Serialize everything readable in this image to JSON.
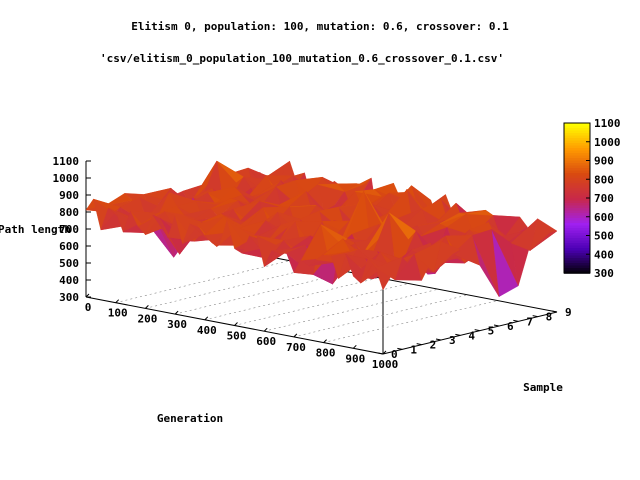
{
  "chart_data": {
    "type": "surface",
    "title": "Elitism 0, population: 100, mutation: 0.6, crossover: 0.1",
    "series_label": "'csv/elitism_0_population_100_mutation_0.6_crossover_0.1.csv'",
    "xlabel": "Generation",
    "ylabel": "Sample",
    "zlabel": "Path length",
    "x_ticks": [
      "0",
      "100",
      "200",
      "300",
      "400",
      "500",
      "600",
      "700",
      "800",
      "900",
      "1000"
    ],
    "y_ticks": [
      "0",
      "1",
      "2",
      "3",
      "4",
      "5",
      "6",
      "7",
      "8",
      "9"
    ],
    "z_ticks": [
      "300",
      "400",
      "500",
      "600",
      "700",
      "800",
      "900",
      "1000",
      "1100"
    ],
    "colorbar_ticks": [
      "300",
      "400",
      "500",
      "600",
      "700",
      "800",
      "900",
      "1000",
      "1100"
    ],
    "xlim": [
      0,
      1000
    ],
    "ylim": [
      0,
      9
    ],
    "zlim": [
      300,
      1100
    ],
    "value_range_typical": [
      500,
      950
    ],
    "colormap": [
      "#000000",
      "#4b00b4",
      "#a020f0",
      "#c8284a",
      "#d94a10",
      "#ff9a00",
      "#ffff00"
    ]
  }
}
